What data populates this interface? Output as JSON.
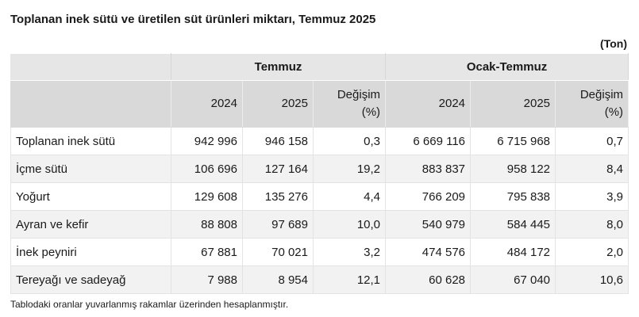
{
  "title": "Toplanan inek sütü ve üretilen süt ürünleri miktarı, Temmuz 2025",
  "unit": "(Ton)",
  "groups": [
    "Temmuz",
    "Ocak-Temmuz"
  ],
  "subheaders": [
    "2024",
    "2025",
    "Değişim",
    "(%)"
  ],
  "rows": [
    {
      "label": "Toplanan inek sütü",
      "v": [
        "942 996",
        "946 158",
        "0,3",
        "6 669 116",
        "6 715 968",
        "0,7"
      ]
    },
    {
      "label": "İçme sütü",
      "v": [
        "106 696",
        "127 164",
        "19,2",
        "883 837",
        "958 122",
        "8,4"
      ]
    },
    {
      "label": "Yoğurt",
      "v": [
        "129 608",
        "135 276",
        "4,4",
        "766 209",
        "795 838",
        "3,9"
      ]
    },
    {
      "label": "Ayran ve kefir",
      "v": [
        "88 808",
        "97 689",
        "10,0",
        "540 979",
        "584 445",
        "8,0"
      ]
    },
    {
      "label": "İnek peyniri",
      "v": [
        "67 881",
        "70 021",
        "3,2",
        "474 576",
        "484 172",
        "2,0"
      ]
    },
    {
      "label": "Tereyağı ve sadeyağ",
      "v": [
        "7 988",
        "8 954",
        "12,1",
        "60 628",
        "67 040",
        "10,6"
      ]
    }
  ],
  "note": "Tablodaki oranlar yuvarlanmış rakamlar üzerinden hesaplanmıştır."
}
